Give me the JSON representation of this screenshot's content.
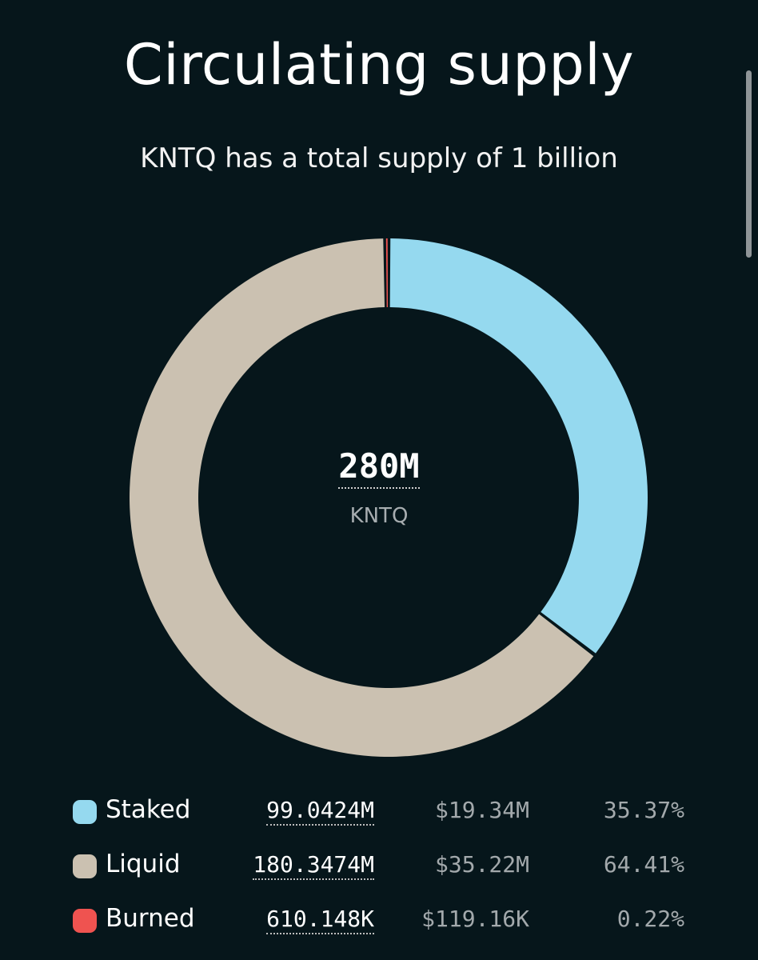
{
  "chart_data": {
    "type": "pie",
    "title": "Circulating supply",
    "subtitle": "KNTQ has a total supply of 1 billion",
    "center": {
      "value": "280M",
      "unit": "KNTQ"
    },
    "series": [
      {
        "name": "Staked",
        "amount": "99.0424M",
        "usd": "$19.34M",
        "percent_label": "35.37%",
        "value": 35.37,
        "color": "#95d9ef"
      },
      {
        "name": "Liquid",
        "amount": "180.3474M",
        "usd": "$35.22M",
        "percent_label": "64.41%",
        "value": 64.41,
        "color": "#cbc1b1"
      },
      {
        "name": "Burned",
        "amount": "610.148K",
        "usd": "$119.16K",
        "percent_label": "0.22%",
        "value": 0.22,
        "color": "#ef5350"
      }
    ],
    "legend_position": "bottom"
  },
  "colors": {
    "background": "#06161b"
  }
}
